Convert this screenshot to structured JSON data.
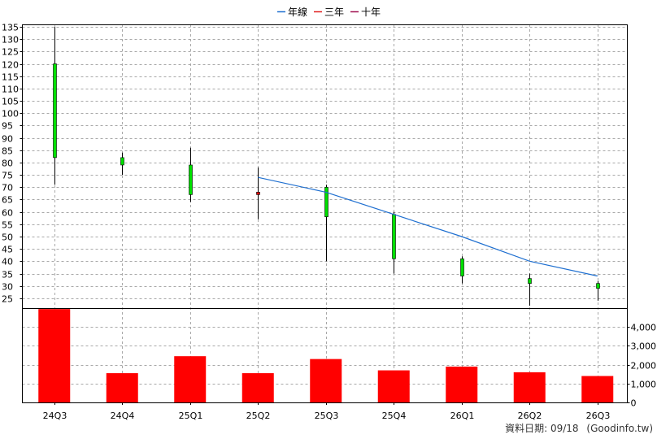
{
  "chart_data": {
    "type": "candlestick+bar",
    "legend": [
      {
        "name": "年線",
        "color": "#1e6fd0"
      },
      {
        "name": "三年",
        "color": "#e02020"
      },
      {
        "name": "十年",
        "color": "#a01050"
      }
    ],
    "categories": [
      "24Q3",
      "24Q4",
      "25Q1",
      "25Q2",
      "25Q3",
      "25Q4",
      "26Q1",
      "26Q2",
      "26Q3"
    ],
    "price_axis": {
      "ticks": [
        "135",
        "130",
        "125",
        "120",
        "115",
        "110",
        "105",
        "100",
        "95",
        "90",
        "85",
        "80",
        "75",
        "70",
        "65",
        "60",
        "55",
        "50",
        "45",
        "40",
        "35",
        "30",
        "25"
      ],
      "ylim": [
        21,
        136
      ]
    },
    "candles": [
      {
        "open": 82,
        "close": 120,
        "high": 135,
        "low": 71
      },
      {
        "open": 79,
        "close": 82,
        "high": 84,
        "low": 75
      },
      {
        "open": 67,
        "close": 79,
        "high": 86,
        "low": 64
      },
      {
        "open": 68,
        "close": 67,
        "high": 78,
        "low": 57
      },
      {
        "open": 58,
        "close": 70,
        "high": 71,
        "low": 40
      },
      {
        "open": 41,
        "close": 59,
        "high": 60,
        "low": 35
      },
      {
        "open": 34,
        "close": 41,
        "high": 42,
        "low": 31
      },
      {
        "open": 31,
        "close": 33,
        "high": 35,
        "low": 22
      },
      {
        "open": 29,
        "close": 31,
        "high": 32,
        "low": 24
      }
    ],
    "year_line": [
      null,
      null,
      null,
      74,
      68,
      59,
      50,
      40,
      34
    ],
    "volume_axis": {
      "ticks": [
        "4,000",
        "3,000",
        "2,000",
        "1,000",
        "0"
      ],
      "ylim": [
        0,
        5000
      ]
    },
    "volume": [
      4950,
      1550,
      2450,
      1550,
      2300,
      1700,
      1900,
      1600,
      1400
    ],
    "colors": {
      "up_candle": "#00e000",
      "down_candle": "#e00000",
      "volume_bar": "#ff0000",
      "year_line": "#1e6fd0"
    }
  },
  "footer": {
    "label": "資料日期: 09/18",
    "source": "(Goodinfo.tw)"
  }
}
